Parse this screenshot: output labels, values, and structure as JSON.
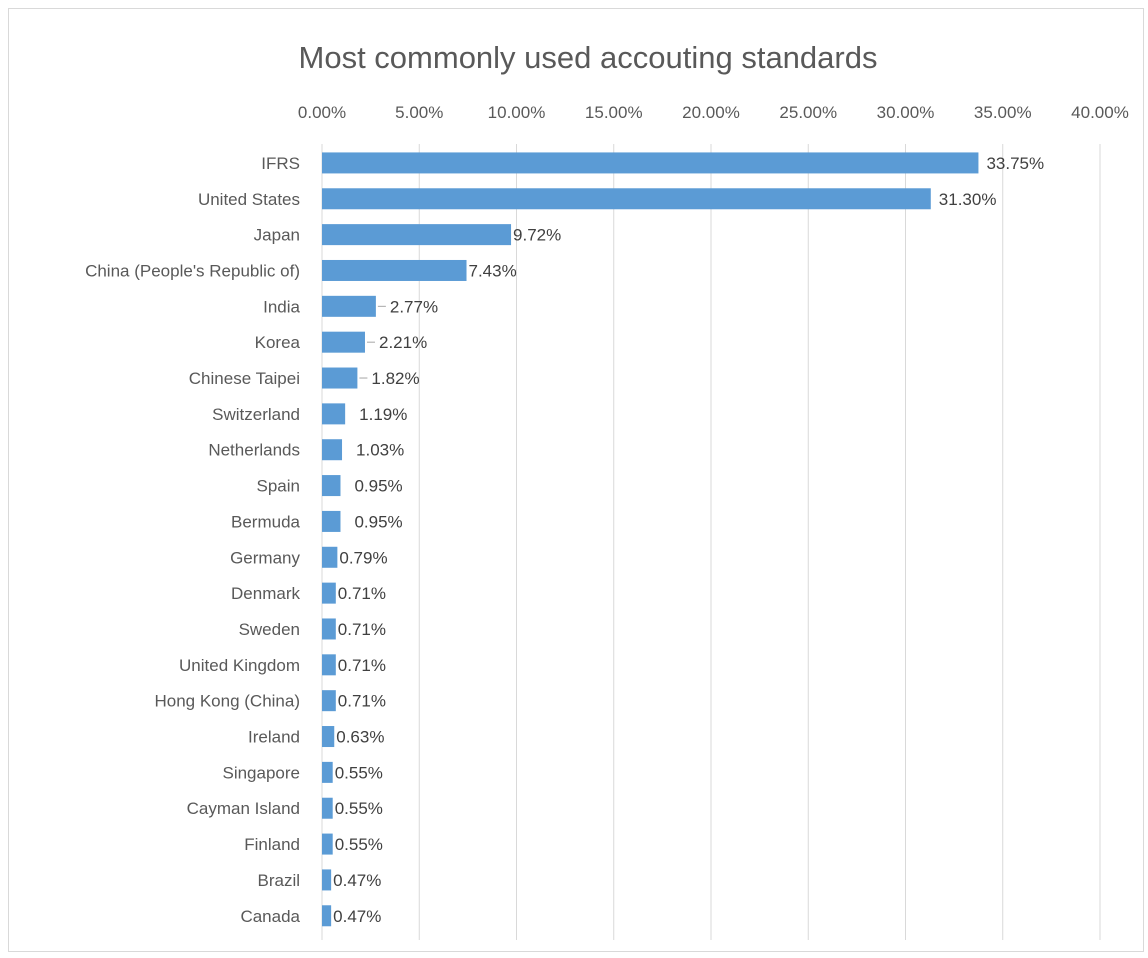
{
  "chart_data": {
    "type": "bar",
    "orientation": "horizontal",
    "title": "Most commonly used accouting standards",
    "xlim": [
      0,
      40
    ],
    "x_ticks": [
      "0.00%",
      "5.00%",
      "10.00%",
      "15.00%",
      "20.00%",
      "25.00%",
      "30.00%",
      "35.00%",
      "40.00%"
    ],
    "x_axis_position": "top",
    "grid": "vertical",
    "legend": "none",
    "categories": [
      "IFRS",
      "United States",
      "Japan",
      "China (People's Republic of)",
      "India",
      "Korea",
      "Chinese Taipei",
      "Switzerland",
      "Netherlands",
      "Spain",
      "Bermuda",
      "Germany",
      "Denmark",
      "Sweden",
      "United Kingdom",
      "Hong Kong (China)",
      "Ireland",
      "Singapore",
      "Cayman Island",
      "Finland",
      "Brazil",
      "Canada"
    ],
    "values": [
      33.75,
      31.3,
      9.72,
      7.43,
      2.77,
      2.21,
      1.82,
      1.19,
      1.03,
      0.95,
      0.95,
      0.79,
      0.71,
      0.71,
      0.71,
      0.71,
      0.63,
      0.55,
      0.55,
      0.55,
      0.47,
      0.47
    ],
    "value_labels": [
      "33.75%",
      "31.30%",
      "9.72%",
      "7.43%",
      "2.77%",
      "2.21%",
      "1.82%",
      "1.19%",
      "1.03%",
      "0.95%",
      "0.95%",
      "0.79%",
      "0.71%",
      "0.71%",
      "0.71%",
      "0.71%",
      "0.63%",
      "0.55%",
      "0.55%",
      "0.55%",
      "0.47%",
      "0.47%"
    ],
    "colors": {
      "bar": "#5b9bd5",
      "grid": "#d9d9d9",
      "text": "#595959",
      "label": "#404040"
    }
  }
}
